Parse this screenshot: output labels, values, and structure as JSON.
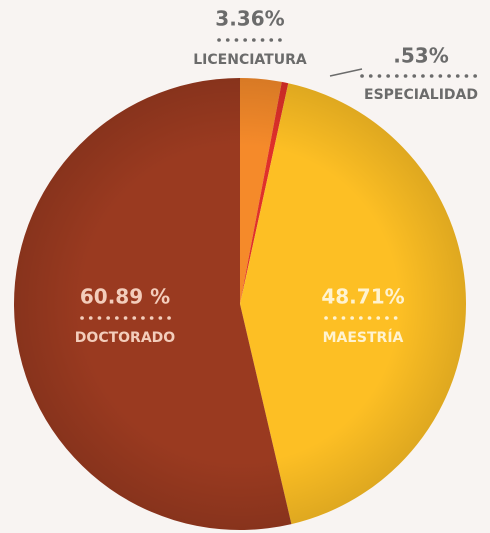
{
  "chart_data": {
    "type": "pie",
    "categories": [
      "LICENCIATURA",
      "ESPECIALIDAD",
      "MAESTRÍA",
      "DOCTORADO"
    ],
    "values": [
      3.36,
      0.53,
      48.71,
      60.89
    ],
    "value_labels": [
      "3.36%",
      ".53%",
      "48.71%",
      "60.89 %"
    ],
    "colors": [
      "#f58a2a",
      "#e0302a",
      "#fdbf24",
      "#9a3a20"
    ]
  }
}
